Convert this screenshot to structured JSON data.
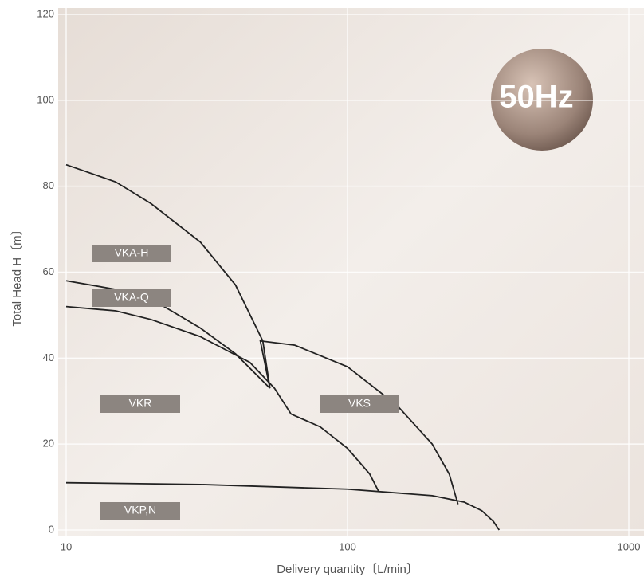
{
  "chart_data": {
    "type": "line",
    "badge": "50Hz",
    "xlabel": "Delivery quantity〔L/min〕",
    "ylabel": "Total Head H〔m〕",
    "xlim": [
      10,
      1000
    ],
    "xticks": [
      10,
      100,
      1000
    ],
    "xlog": true,
    "ylim": [
      0,
      120
    ],
    "yticks": [
      0,
      20,
      40,
      60,
      80,
      100,
      120
    ],
    "grid": true,
    "series": [
      {
        "name": "VKA-H",
        "color": "#222222",
        "x": [
          10,
          15,
          20,
          30,
          40,
          50,
          53
        ],
        "values": [
          85,
          81,
          76,
          67,
          57,
          44,
          33
        ]
      },
      {
        "name": "VKA-Q",
        "color": "#222222",
        "x": [
          10,
          15,
          21,
          30,
          40,
          53
        ],
        "values": [
          58,
          56,
          53,
          47,
          41,
          33
        ]
      },
      {
        "name": "VKR",
        "color": "#222222",
        "x": [
          10,
          15,
          20,
          30,
          45,
          55,
          63,
          80,
          100,
          120,
          129
        ],
        "values": [
          52,
          51,
          49,
          45,
          39,
          33,
          27,
          24,
          19,
          13,
          9
        ]
      },
      {
        "name": "VKS",
        "color": "#222222",
        "x": [
          53,
          49,
          65,
          100,
          150,
          200,
          230,
          247
        ],
        "values": [
          33,
          44,
          43,
          38,
          29,
          20,
          13,
          6
        ]
      },
      {
        "name": "VKP,N",
        "color": "#222222",
        "x": [
          10,
          30,
          100,
          200,
          260,
          300,
          330,
          346
        ],
        "values": [
          11,
          10.6,
          9.5,
          8,
          6.5,
          4.5,
          2,
          0
        ]
      }
    ]
  }
}
